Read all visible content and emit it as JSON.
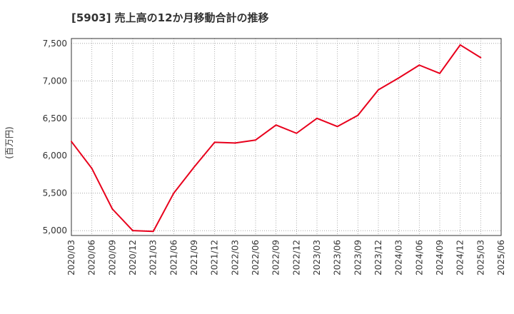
{
  "chart_data": {
    "type": "line",
    "title": "[5903]  売上高の12か月移動合計の推移",
    "xlabel": "",
    "ylabel": "(百万円)",
    "x": [
      "2020/03",
      "2020/06",
      "2020/09",
      "2020/12",
      "2021/03",
      "2021/06",
      "2021/09",
      "2021/12",
      "2022/03",
      "2022/06",
      "2022/09",
      "2022/12",
      "2023/03",
      "2023/06",
      "2023/09",
      "2023/12",
      "2024/03",
      "2024/06",
      "2024/09",
      "2024/12",
      "2025/03"
    ],
    "tick_labels": [
      "2020/03",
      "2020/06",
      "2020/09",
      "2020/12",
      "2021/03",
      "2021/06",
      "2021/09",
      "2021/12",
      "2022/03",
      "2022/06",
      "2022/09",
      "2022/12",
      "2023/03",
      "2023/06",
      "2023/09",
      "2023/12",
      "2024/03",
      "2024/06",
      "2024/09",
      "2024/12",
      "2025/03",
      "2025/06"
    ],
    "series": [
      {
        "name": "売上高",
        "color": "#e8001c",
        "values": [
          6190,
          5830,
          5290,
          5000,
          4990,
          5500,
          5850,
          6180,
          6170,
          6210,
          6410,
          6300,
          6500,
          6390,
          6540,
          6880,
          7040,
          7210,
          7100,
          7480,
          7310
        ]
      }
    ],
    "ylim": [
      4935,
      7565
    ],
    "yticks": [
      5000,
      5500,
      6000,
      6500,
      7000,
      7500
    ],
    "ytick_labels": [
      "5,000",
      "5,500",
      "6,000",
      "6,500",
      "7,000",
      "7,500"
    ],
    "grid": true
  }
}
